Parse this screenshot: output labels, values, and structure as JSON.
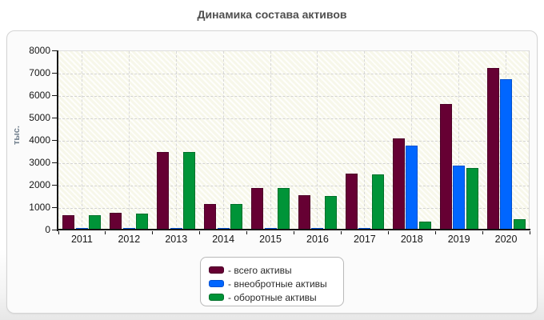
{
  "title": "Динамика состава активов",
  "chart_data": {
    "type": "bar",
    "title": "Динамика состава активов",
    "xlabel": "",
    "ylabel": "тыс.",
    "ylim": [
      0,
      8000
    ],
    "ytick_step": 1000,
    "grid": true,
    "legend_position": "bottom-center",
    "categories": [
      "2011",
      "2012",
      "2013",
      "2014",
      "2015",
      "2016",
      "2017",
      "2018",
      "2019",
      "2020"
    ],
    "series": [
      {
        "name": "всего активы",
        "color": "#660033",
        "border_color": "#4d0028",
        "values": [
          650,
          740,
          3480,
          1160,
          1860,
          1520,
          2500,
          4070,
          5610,
          7210
        ]
      },
      {
        "name": "внеобротные активы",
        "color": "#0066ff",
        "border_color": "#0050d0",
        "values": [
          50,
          50,
          50,
          50,
          50,
          60,
          60,
          3740,
          2860,
          6700
        ]
      },
      {
        "name": "оборотные активы",
        "color": "#009438",
        "border_color": "#00702a",
        "values": [
          640,
          730,
          3470,
          1150,
          1840,
          1510,
          2470,
          360,
          2750,
          470
        ]
      }
    ]
  },
  "legend": {
    "items": [
      {
        "label": "- всего активы",
        "color": "#660033",
        "border_color": "#4d0028"
      },
      {
        "label": "- внеобротные активы",
        "color": "#0066ff",
        "border_color": "#0050d0"
      },
      {
        "label": "- оборотные активы",
        "color": "#009438",
        "border_color": "#00702a"
      }
    ]
  },
  "colors": {
    "plot_background": "#f7f7ea",
    "gridline": "#d3d3d3",
    "axis": "#161616",
    "title_text": "#4f4f4f",
    "y_axis_title_text": "#72808e"
  }
}
